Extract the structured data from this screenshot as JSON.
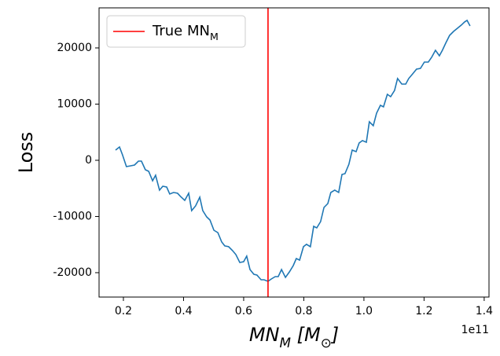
{
  "chart_data": {
    "type": "line",
    "x_label": "MN_M [M_⊙]",
    "y_label": "Loss",
    "x_offset_label": "1e11",
    "x": [
      0.174,
      0.187,
      0.197,
      0.21,
      0.224,
      0.237,
      0.25,
      0.26,
      0.273,
      0.284,
      0.297,
      0.307,
      0.32,
      0.331,
      0.344,
      0.354,
      0.367,
      0.38,
      0.39,
      0.404,
      0.417,
      0.427,
      0.44,
      0.454,
      0.464,
      0.477,
      0.488,
      0.501,
      0.514,
      0.527,
      0.537,
      0.55,
      0.563,
      0.574,
      0.587,
      0.6,
      0.61,
      0.621,
      0.634,
      0.644,
      0.658,
      0.668,
      0.681,
      0.692,
      0.705,
      0.715,
      0.726,
      0.739,
      0.752,
      0.765,
      0.775,
      0.786,
      0.799,
      0.809,
      0.822,
      0.833,
      0.843,
      0.856,
      0.867,
      0.88,
      0.89,
      0.903,
      0.916,
      0.927,
      0.937,
      0.95,
      0.961,
      0.974,
      0.984,
      0.995,
      1.008,
      1.018,
      1.031,
      1.042,
      1.055,
      1.065,
      1.078,
      1.089,
      1.102,
      1.112,
      1.126,
      1.139,
      1.149,
      1.162,
      1.175,
      1.188,
      1.201,
      1.214,
      1.225,
      1.238,
      1.251,
      1.261,
      1.272,
      1.285,
      1.298,
      1.311,
      1.324,
      1.335,
      1.343,
      1.353
    ],
    "values": [
      1820,
      2380,
      980,
      -1120,
      -980,
      -840,
      -140,
      -140,
      -1680,
      -1960,
      -3640,
      -2660,
      -5310,
      -4620,
      -4760,
      -6010,
      -5730,
      -5870,
      -6430,
      -7130,
      -5870,
      -8950,
      -8110,
      -6570,
      -8950,
      -10070,
      -10630,
      -12450,
      -12870,
      -14540,
      -15240,
      -15380,
      -16080,
      -16780,
      -18180,
      -18040,
      -17060,
      -19440,
      -20280,
      -20420,
      -21260,
      -21260,
      -21540,
      -21120,
      -20700,
      -20700,
      -19440,
      -20840,
      -19860,
      -18740,
      -17480,
      -17760,
      -15380,
      -14960,
      -15380,
      -11750,
      -12030,
      -10910,
      -8390,
      -7690,
      -5730,
      -5310,
      -5730,
      -2520,
      -2380,
      -700,
      1820,
      1540,
      3080,
      3500,
      3220,
      6850,
      6150,
      8390,
      9790,
      9510,
      11750,
      11330,
      12450,
      14550,
      13570,
      13570,
      14550,
      15380,
      16220,
      16360,
      17480,
      17480,
      18320,
      19580,
      18600,
      19580,
      20840,
      22240,
      22940,
      23500,
      24060,
      24620,
      24900,
      23920
    ],
    "color": "#1f77b4",
    "vlines": [
      {
        "name": "True MN_M",
        "x": 0.681,
        "color": "#ff0000"
      }
    ],
    "legend": "upper left",
    "xlim": [
      0.119,
      1.416
    ],
    "xticks": [
      0.2,
      0.4,
      0.6,
      0.8,
      1.0,
      1.2,
      1.4
    ],
    "ylim": [
      -24340,
      27130
    ],
    "yticks": [
      -20000,
      -10000,
      0,
      10000,
      20000
    ]
  }
}
